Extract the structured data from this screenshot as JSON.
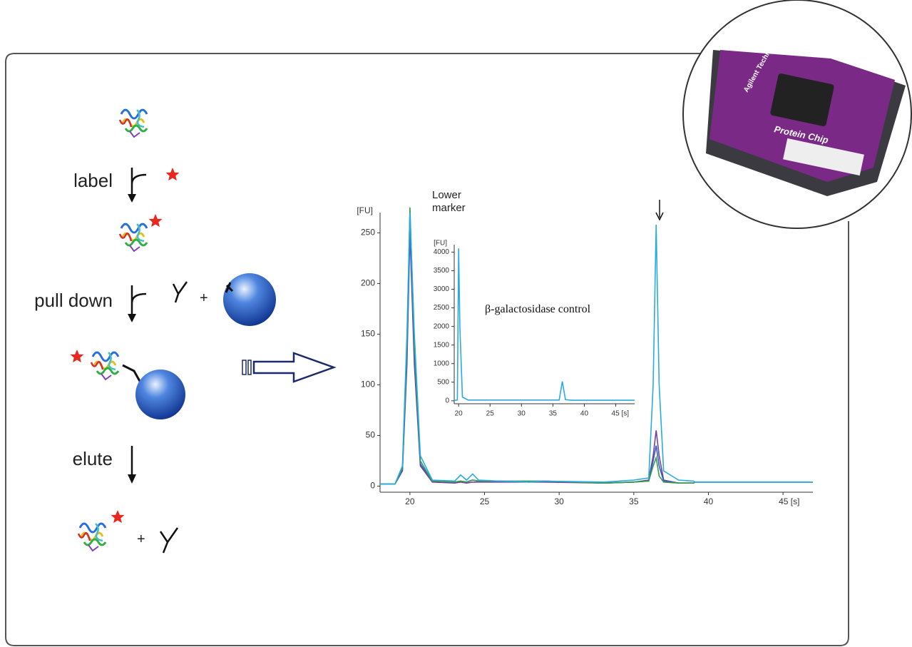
{
  "workflow": {
    "steps": [
      "label",
      "pull down",
      "elute"
    ],
    "plus_sign": "+"
  },
  "chip_photo": {
    "brand": "Agilent Technologies",
    "product": "Protein Chip"
  },
  "chart_data": [
    {
      "type": "line",
      "y_label": "[FU]",
      "annotation": "Lower marker",
      "x": [
        18,
        19,
        19.5,
        19.8,
        20,
        20.3,
        20.7,
        21.5,
        23,
        23.4,
        23.8,
        24.2,
        24.6,
        26,
        28,
        29,
        33,
        35,
        36,
        36.3,
        36.5,
        36.7,
        37,
        38,
        39,
        39.1,
        42,
        47
      ],
      "series": [
        {
          "color": "#7b3f9e",
          "values": [
            2,
            2,
            15,
            120,
            250,
            120,
            20,
            4,
            3,
            4,
            3,
            4,
            4,
            4,
            4,
            4,
            3,
            4,
            6,
            30,
            55,
            30,
            6,
            3,
            3,
            4,
            4,
            4
          ]
        },
        {
          "color": "#3060c0",
          "values": [
            2,
            2,
            16,
            130,
            260,
            130,
            22,
            5,
            4,
            5,
            4,
            6,
            5,
            5,
            4,
            5,
            3,
            4,
            5,
            25,
            40,
            20,
            5,
            3,
            3,
            4,
            4,
            4
          ]
        },
        {
          "color": "#3a9a4a",
          "values": [
            2,
            2,
            18,
            140,
            275,
            140,
            25,
            5,
            4,
            5,
            4,
            6,
            5,
            5,
            5,
            5,
            3,
            4,
            5,
            20,
            28,
            10,
            4,
            3,
            3,
            4,
            4,
            4
          ]
        },
        {
          "color": "#29abe2",
          "values": [
            2,
            2,
            20,
            150,
            270,
            150,
            30,
            6,
            5,
            11,
            6,
            12,
            6,
            5,
            4,
            5,
            4,
            6,
            8,
            100,
            258,
            100,
            15,
            6,
            5,
            4,
            4,
            4
          ]
        }
      ],
      "xlim": [
        18,
        47
      ],
      "ylim": [
        -6,
        270
      ],
      "xticks": [
        20,
        25,
        30,
        35,
        40,
        {
          "value": 45,
          "label": "45 [s]"
        }
      ],
      "yticks": [
        0,
        50,
        100,
        150,
        200,
        250
      ]
    },
    {
      "type": "line",
      "y_label": "[FU]",
      "annotation": "β-galactosidase control",
      "x": [
        19.3,
        19.8,
        20,
        20.2,
        20.6,
        21.5,
        29,
        36,
        36.5,
        37,
        38,
        48
      ],
      "series": [
        {
          "color": "#29abe2",
          "values": [
            10,
            20,
            4100,
            2000,
            100,
            20,
            20,
            20,
            520,
            30,
            15,
            15
          ]
        }
      ],
      "xlim": [
        19.3,
        48
      ],
      "ylim": [
        -80,
        4200
      ],
      "xticks": [
        20,
        25,
        30,
        35,
        40,
        {
          "value": 45,
          "label": "45 [s]"
        }
      ],
      "yticks": [
        0,
        500,
        1000,
        1500,
        2000,
        2500,
        3000,
        3500,
        4000
      ]
    }
  ]
}
